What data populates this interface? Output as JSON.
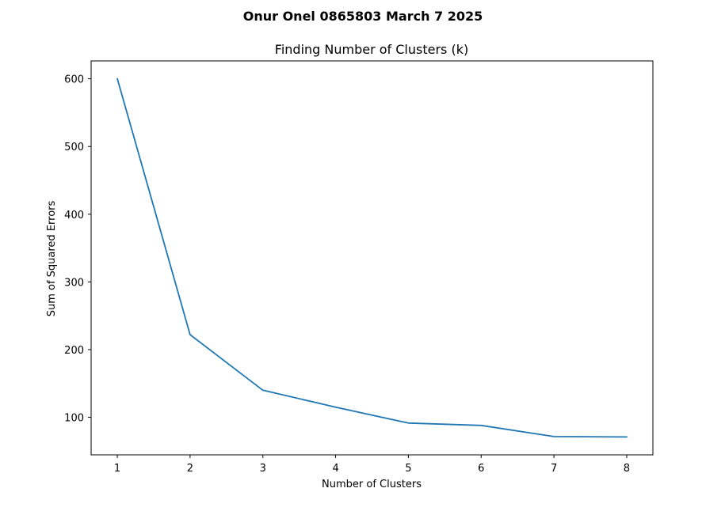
{
  "chart_data": {
    "type": "line",
    "suptitle": "Onur Onel 0865803 March 7 2025",
    "title": "Finding Number of Clusters (k)",
    "xlabel": "Number of Clusters",
    "ylabel": "Sum of Squared Errors",
    "x": [
      1,
      2,
      3,
      4,
      5,
      6,
      7,
      8
    ],
    "series": [
      {
        "values": [
          600.0,
          222.0,
          140.0,
          115.0,
          91.5,
          88.0,
          71.5,
          71.0
        ]
      }
    ],
    "xlim": [
      0.64,
      8.36
    ],
    "ylim": [
      44.55,
      626.45
    ],
    "xticks": [
      1,
      2,
      3,
      4,
      5,
      6,
      7,
      8
    ],
    "yticks": [
      100,
      200,
      300,
      400,
      500,
      600
    ],
    "grid": false,
    "line_color": "#1f77b4"
  }
}
